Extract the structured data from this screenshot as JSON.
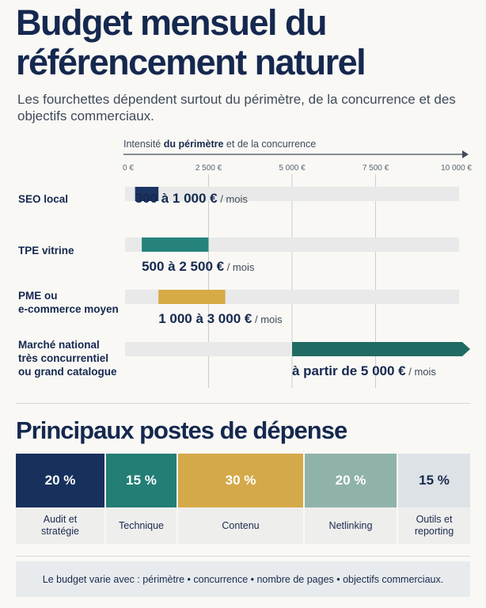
{
  "header": {
    "title": "Budget mensuel du référencement naturel",
    "subtitle": "Les fourchettes dépendent surtout du périmètre, de la concurrence et des objectifs commerciaux."
  },
  "chart_data": [
    {
      "type": "range-bar",
      "axis_label": {
        "prefix": "Intensité ",
        "bold": "du périmètre",
        "suffix": " et de la concurrence"
      },
      "ticks": [
        0,
        2500,
        5000,
        7500,
        10000
      ],
      "tick_labels": [
        "0 €",
        "2 500 €",
        "5 000 €",
        "7 500 €",
        "10 000 €"
      ],
      "xlim": [
        0,
        10000
      ],
      "grid": true,
      "categories": [
        {
          "label": "SEO local",
          "low": 300,
          "high": 1000,
          "value_label": "300 à 1 000 €",
          "unit": "/ mois",
          "color": "#1c3461"
        },
        {
          "label": "TPE vitrine",
          "low": 500,
          "high": 2500,
          "value_label": "500 à 2 500 €",
          "unit": "/ mois",
          "color": "#25837b"
        },
        {
          "label": "PME ou\ne-commerce moyen",
          "low": 1000,
          "high": 3000,
          "value_label": "1 000 à 3 000 €",
          "unit": "/ mois",
          "color": "#d6aa45"
        },
        {
          "label": "Marché national\ntrès concurrentiel\nou grand catalogue",
          "low": 5000,
          "high": 10000,
          "open_ended": true,
          "value_label": "à partir de 5 000 €",
          "unit": "/ mois",
          "color": "#1f6b63"
        }
      ]
    },
    {
      "type": "table",
      "title": "Principaux postes de dépense",
      "items": [
        {
          "percent": "20 %",
          "value": 20,
          "label": "Audit et\nstratégie",
          "color": "#17315c",
          "text_color": "#ffffff"
        },
        {
          "percent": "15 %",
          "value": 15,
          "label": "Technique",
          "color": "#237e76",
          "text_color": "#ffffff"
        },
        {
          "percent": "30 %",
          "value": 30,
          "label": "Contenu",
          "color": "#d4a94a",
          "text_color": "#ffffff"
        },
        {
          "percent": "20 %",
          "value": 20,
          "label": "Netlinking",
          "color": "#8fb3a9",
          "text_color": "#ffffff"
        },
        {
          "percent": "15 %",
          "value": 15,
          "label": "Outils et\nreporting",
          "color": "#dde2e7",
          "text_color": "#1a2b4c"
        }
      ]
    }
  ],
  "footer": {
    "text": "Le budget varie avec : périmètre • concurrence • nombre de pages • objectifs commerciaux."
  }
}
